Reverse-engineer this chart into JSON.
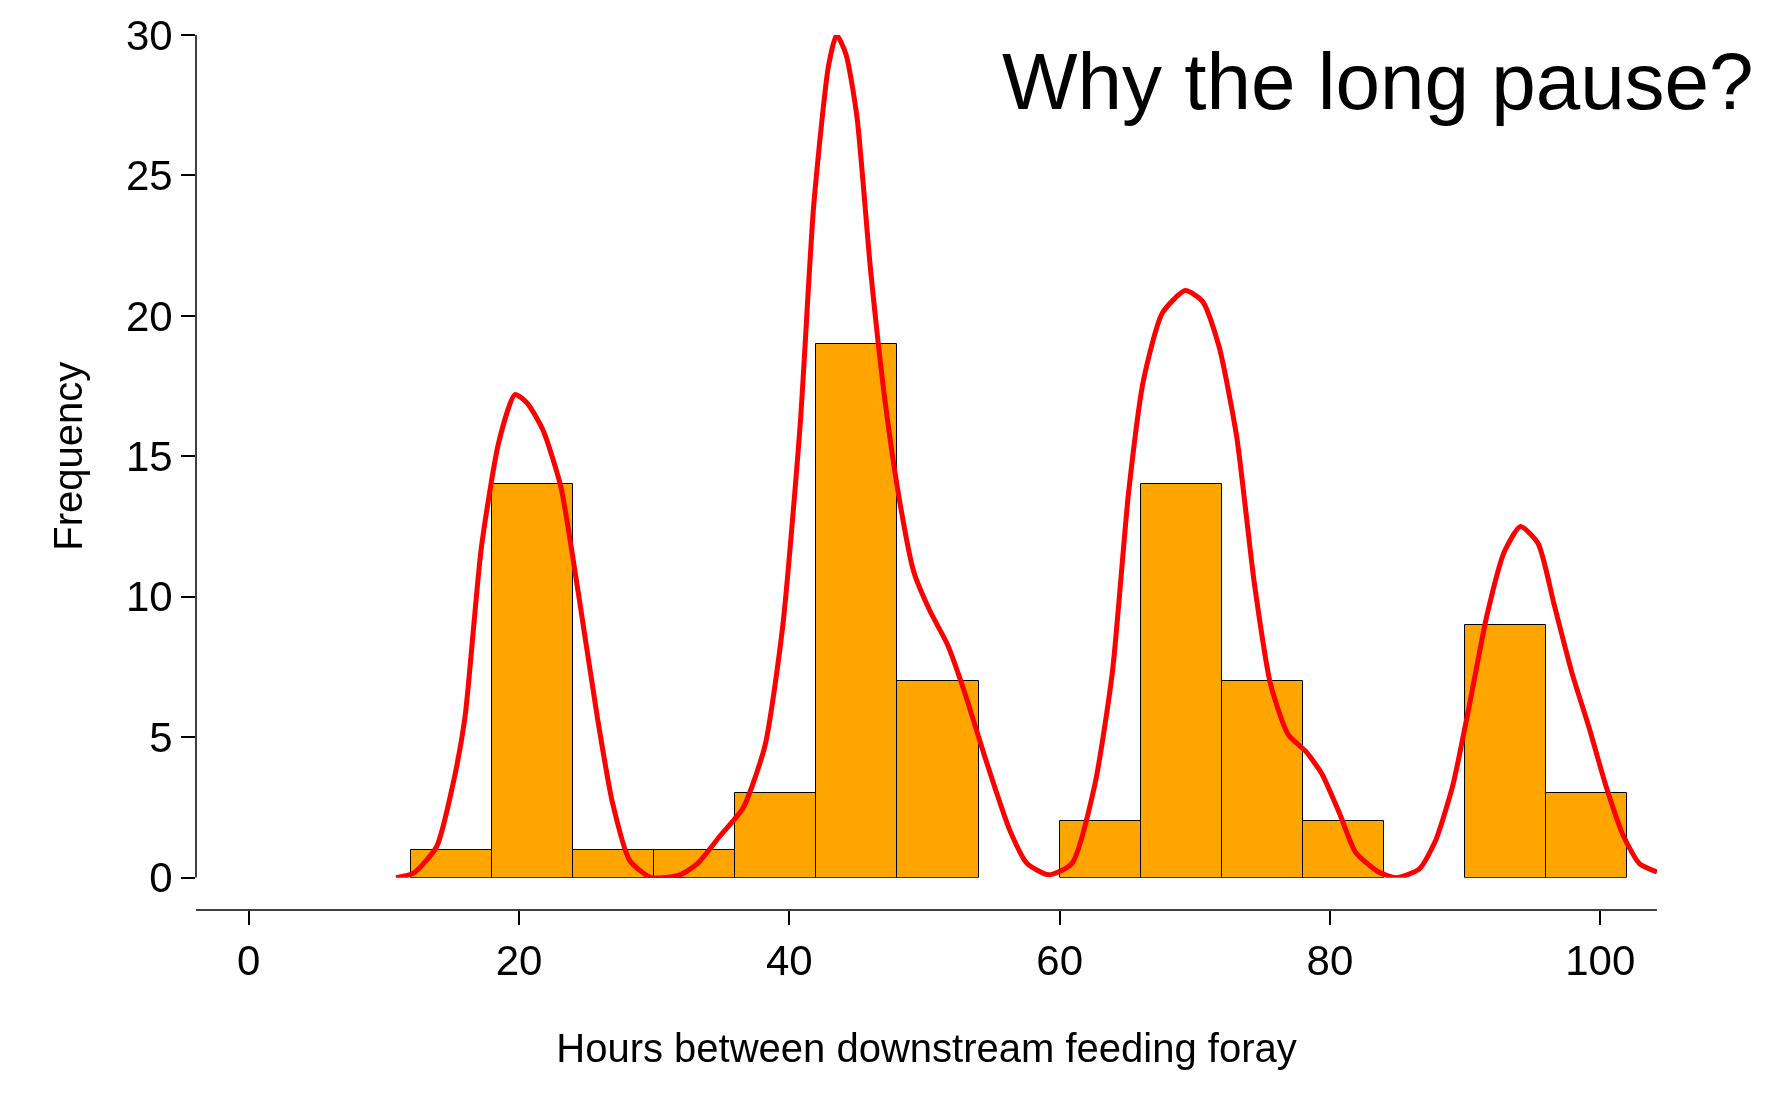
{
  "chart_data": {
    "type": "histogram",
    "title": "Why the long pause?",
    "xlabel": "Hours between downstream feeding foray",
    "ylabel": "Frequency",
    "bins": [
      0,
      6,
      12,
      18,
      24,
      30,
      36,
      42,
      48,
      54,
      60,
      66,
      72,
      78,
      84,
      90,
      96,
      102
    ],
    "values": [
      0,
      0,
      1,
      14,
      1,
      1,
      3,
      19,
      7,
      0,
      2,
      14,
      7,
      2,
      0,
      9,
      3
    ],
    "color": "#ffa500",
    "series": [
      {
        "type": "line",
        "color": "#ff0000",
        "x": [
          10.9,
          12.2,
          13.9,
          15.1,
          16.0,
          17.2,
          18.5,
          19.7,
          20.6,
          21.8,
          23.1,
          24.4,
          25.8,
          26.9,
          28.2,
          29.8,
          31.9,
          33.2,
          34.9,
          36.6,
          38.2,
          39.5,
          40.8,
          41.8,
          42.9,
          43.5,
          44.2,
          45.0,
          46.0,
          47.1,
          48.2,
          49.2,
          50.4,
          51.7,
          52.9,
          54.6,
          56.3,
          57.6,
          59.2,
          60.9,
          62.6,
          63.9,
          65.1,
          66.2,
          67.6,
          69.3,
          70.6,
          71.8,
          73.1,
          74.4,
          75.6,
          76.9,
          78.2,
          79.4,
          80.7,
          81.9,
          83.6,
          84.9,
          86.6,
          87.8,
          89.1,
          90.3,
          91.6,
          92.9,
          94.1,
          95.4,
          96.6,
          97.9,
          99.2,
          100.4,
          101.7,
          102.9,
          104.2
        ],
        "values": [
          0,
          0.16,
          1.1,
          3.3,
          5.7,
          11.7,
          15.5,
          17.2,
          16.9,
          15.9,
          13.9,
          10.1,
          5.7,
          2.7,
          0.6,
          0,
          0.1,
          0.5,
          1.5,
          2.5,
          4.7,
          8.9,
          16.1,
          23.9,
          28.9,
          30,
          29.3,
          27.1,
          21.7,
          16.9,
          13.3,
          10.9,
          9.5,
          8.3,
          6.7,
          4.1,
          1.7,
          0.5,
          0.1,
          0.5,
          3.3,
          7.3,
          13.7,
          17.7,
          20.1,
          20.9,
          20.5,
          18.9,
          15.7,
          10.5,
          6.9,
          5.1,
          4.5,
          3.7,
          2.3,
          0.9,
          0.2,
          0,
          0.3,
          1.3,
          3.3,
          6.1,
          9.3,
          11.6,
          12.5,
          11.9,
          9.7,
          7.3,
          5.3,
          3.3,
          1.5,
          0.5,
          0.2
        ]
      }
    ],
    "xlim": [
      -3.9,
      104.2
    ],
    "xticks": [
      0,
      20,
      40,
      60,
      80,
      100
    ],
    "ylim": [
      0,
      30
    ],
    "yticks": [
      0,
      5,
      10,
      15,
      20,
      25,
      30
    ]
  }
}
